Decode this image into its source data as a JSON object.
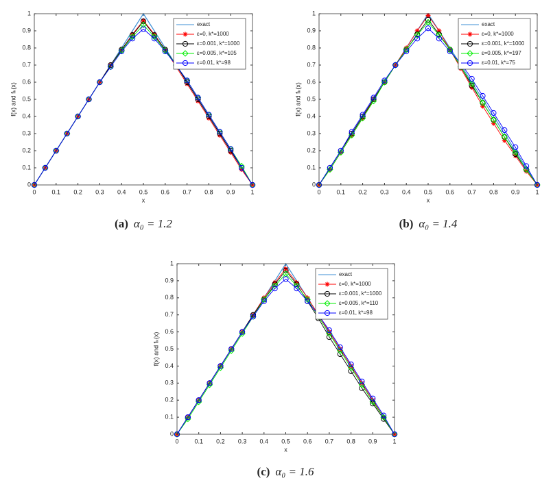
{
  "chart_data": [
    {
      "type": "line",
      "caption_label": "(a)",
      "caption": "α₀ = 1.2",
      "xlabel": "x",
      "ylabel": "f(x) and fₖ(x)",
      "x": [
        0,
        0.05,
        0.1,
        0.15,
        0.2,
        0.25,
        0.3,
        0.35,
        0.4,
        0.45,
        0.5,
        0.55,
        0.6,
        0.65,
        0.7,
        0.75,
        0.8,
        0.85,
        0.9,
        0.95,
        1
      ],
      "series": [
        {
          "name": "exact",
          "color": "#3d8fd6",
          "marker": "none",
          "values": [
            0,
            0.1,
            0.2,
            0.3,
            0.4,
            0.5,
            0.6,
            0.7,
            0.8,
            0.9,
            1,
            0.9,
            0.8,
            0.7,
            0.6,
            0.5,
            0.4,
            0.3,
            0.2,
            0.1,
            0
          ]
        },
        {
          "name": "ε=0, k*=1000",
          "color": "#ff0000",
          "marker": "star",
          "values": [
            0,
            0.1,
            0.2,
            0.3,
            0.4,
            0.5,
            0.6,
            0.7,
            0.79,
            0.88,
            0.96,
            0.88,
            0.79,
            0.69,
            0.59,
            0.49,
            0.39,
            0.29,
            0.19,
            0.09,
            0
          ]
        },
        {
          "name": "ε=0.001, k*=1000",
          "color": "#000000",
          "marker": "circle",
          "values": [
            0,
            0.1,
            0.2,
            0.3,
            0.4,
            0.5,
            0.6,
            0.7,
            0.79,
            0.875,
            0.955,
            0.875,
            0.79,
            0.7,
            0.6,
            0.5,
            0.4,
            0.3,
            0.2,
            0.1,
            0
          ]
        },
        {
          "name": "ε=0.005, k*=105",
          "color": "#00ee00",
          "marker": "diamond",
          "values": [
            0,
            0.1,
            0.2,
            0.3,
            0.4,
            0.5,
            0.6,
            0.69,
            0.785,
            0.865,
            0.935,
            0.865,
            0.785,
            0.7,
            0.61,
            0.51,
            0.41,
            0.31,
            0.21,
            0.11,
            0
          ]
        },
        {
          "name": "ε=0.01, k*=98",
          "color": "#0000ff",
          "marker": "circle",
          "values": [
            0,
            0.1,
            0.2,
            0.3,
            0.4,
            0.5,
            0.6,
            0.69,
            0.78,
            0.855,
            0.91,
            0.855,
            0.78,
            0.7,
            0.61,
            0.51,
            0.41,
            0.31,
            0.21,
            0.1,
            0
          ]
        }
      ],
      "xlim": [
        0,
        1
      ],
      "ylim": [
        0,
        1
      ],
      "xticks": [
        0,
        0.1,
        0.2,
        0.3,
        0.4,
        0.5,
        0.6,
        0.7,
        0.8,
        0.9,
        1
      ],
      "yticks": [
        0,
        0.1,
        0.2,
        0.3,
        0.4,
        0.5,
        0.6,
        0.7,
        0.8,
        0.9,
        1
      ],
      "legend": "upper right"
    },
    {
      "type": "line",
      "caption_label": "(b)",
      "caption": "α₀ = 1.4",
      "xlabel": "x",
      "ylabel": "f(x) and fₖ(x)",
      "x": [
        0,
        0.05,
        0.1,
        0.15,
        0.2,
        0.25,
        0.3,
        0.35,
        0.4,
        0.45,
        0.5,
        0.55,
        0.6,
        0.65,
        0.7,
        0.75,
        0.8,
        0.85,
        0.9,
        0.95,
        1
      ],
      "series": [
        {
          "name": "exact",
          "color": "#3d8fd6",
          "marker": "none",
          "values": [
            0,
            0.1,
            0.2,
            0.3,
            0.4,
            0.5,
            0.6,
            0.7,
            0.8,
            0.9,
            1,
            0.9,
            0.8,
            0.7,
            0.6,
            0.5,
            0.4,
            0.3,
            0.2,
            0.1,
            0
          ]
        },
        {
          "name": "ε=0, k*=1000",
          "color": "#ff0000",
          "marker": "star",
          "values": [
            0,
            0.09,
            0.19,
            0.29,
            0.39,
            0.5,
            0.6,
            0.7,
            0.8,
            0.9,
            0.99,
            0.9,
            0.79,
            0.68,
            0.57,
            0.46,
            0.36,
            0.26,
            0.17,
            0.08,
            0
          ]
        },
        {
          "name": "ε=0.001, k*=1000",
          "color": "#000000",
          "marker": "circle",
          "values": [
            0,
            0.1,
            0.2,
            0.3,
            0.4,
            0.5,
            0.6,
            0.7,
            0.79,
            0.88,
            0.965,
            0.88,
            0.79,
            0.69,
            0.58,
            0.48,
            0.38,
            0.28,
            0.18,
            0.09,
            0
          ]
        },
        {
          "name": "ε=0.005, k*=197",
          "color": "#00ee00",
          "marker": "diamond",
          "values": [
            0,
            0.09,
            0.19,
            0.29,
            0.39,
            0.49,
            0.6,
            0.7,
            0.79,
            0.875,
            0.95,
            0.875,
            0.79,
            0.69,
            0.59,
            0.48,
            0.38,
            0.28,
            0.19,
            0.09,
            0
          ]
        },
        {
          "name": "ε=0.01, k*=75",
          "color": "#0000ff",
          "marker": "circle",
          "values": [
            0,
            0.1,
            0.2,
            0.31,
            0.41,
            0.51,
            0.61,
            0.7,
            0.78,
            0.855,
            0.915,
            0.855,
            0.78,
            0.71,
            0.62,
            0.52,
            0.42,
            0.32,
            0.22,
            0.11,
            0
          ]
        }
      ],
      "xlim": [
        0,
        1
      ],
      "ylim": [
        0,
        1
      ],
      "xticks": [
        0,
        0.1,
        0.2,
        0.3,
        0.4,
        0.5,
        0.6,
        0.7,
        0.8,
        0.9,
        1
      ],
      "yticks": [
        0,
        0.1,
        0.2,
        0.3,
        0.4,
        0.5,
        0.6,
        0.7,
        0.8,
        0.9,
        1
      ],
      "legend": "upper right"
    },
    {
      "type": "line",
      "caption_label": "(c)",
      "caption": "α₀ = 1.6",
      "xlabel": "x",
      "ylabel": "f(x) and fₖ(x)",
      "x": [
        0,
        0.05,
        0.1,
        0.15,
        0.2,
        0.25,
        0.3,
        0.35,
        0.4,
        0.45,
        0.5,
        0.55,
        0.6,
        0.65,
        0.7,
        0.75,
        0.8,
        0.85,
        0.9,
        0.95,
        1
      ],
      "series": [
        {
          "name": "exact",
          "color": "#3d8fd6",
          "marker": "none",
          "values": [
            0,
            0.1,
            0.2,
            0.3,
            0.4,
            0.5,
            0.6,
            0.7,
            0.8,
            0.9,
            1,
            0.9,
            0.8,
            0.7,
            0.6,
            0.5,
            0.4,
            0.3,
            0.2,
            0.1,
            0
          ]
        },
        {
          "name": "ε=0, k*=1000",
          "color": "#ff0000",
          "marker": "star",
          "values": [
            0,
            0.1,
            0.2,
            0.3,
            0.4,
            0.5,
            0.6,
            0.7,
            0.8,
            0.89,
            0.97,
            0.89,
            0.8,
            0.7,
            0.6,
            0.5,
            0.4,
            0.3,
            0.2,
            0.1,
            0
          ]
        },
        {
          "name": "ε=0.001, k*=1000",
          "color": "#000000",
          "marker": "circle",
          "values": [
            0,
            0.1,
            0.2,
            0.3,
            0.4,
            0.5,
            0.6,
            0.7,
            0.79,
            0.88,
            0.96,
            0.88,
            0.78,
            0.68,
            0.57,
            0.47,
            0.37,
            0.27,
            0.18,
            0.09,
            0
          ]
        },
        {
          "name": "ε=0.005, k*=110",
          "color": "#00ee00",
          "marker": "diamond",
          "values": [
            0,
            0.09,
            0.19,
            0.29,
            0.39,
            0.49,
            0.59,
            0.69,
            0.79,
            0.87,
            0.94,
            0.87,
            0.79,
            0.69,
            0.59,
            0.49,
            0.39,
            0.29,
            0.19,
            0.1,
            0
          ]
        },
        {
          "name": "ε=0.01, k*=98",
          "color": "#0000ff",
          "marker": "circle",
          "values": [
            0,
            0.1,
            0.2,
            0.3,
            0.4,
            0.5,
            0.6,
            0.69,
            0.78,
            0.855,
            0.91,
            0.855,
            0.78,
            0.7,
            0.61,
            0.51,
            0.41,
            0.31,
            0.21,
            0.11,
            0
          ]
        }
      ],
      "xlim": [
        0,
        1
      ],
      "ylim": [
        0,
        1
      ],
      "xticks": [
        0,
        0.1,
        0.2,
        0.3,
        0.4,
        0.5,
        0.6,
        0.7,
        0.8,
        0.9,
        1
      ],
      "yticks": [
        0,
        0.1,
        0.2,
        0.3,
        0.4,
        0.5,
        0.6,
        0.7,
        0.8,
        0.9,
        1
      ],
      "legend": "upper right"
    }
  ]
}
